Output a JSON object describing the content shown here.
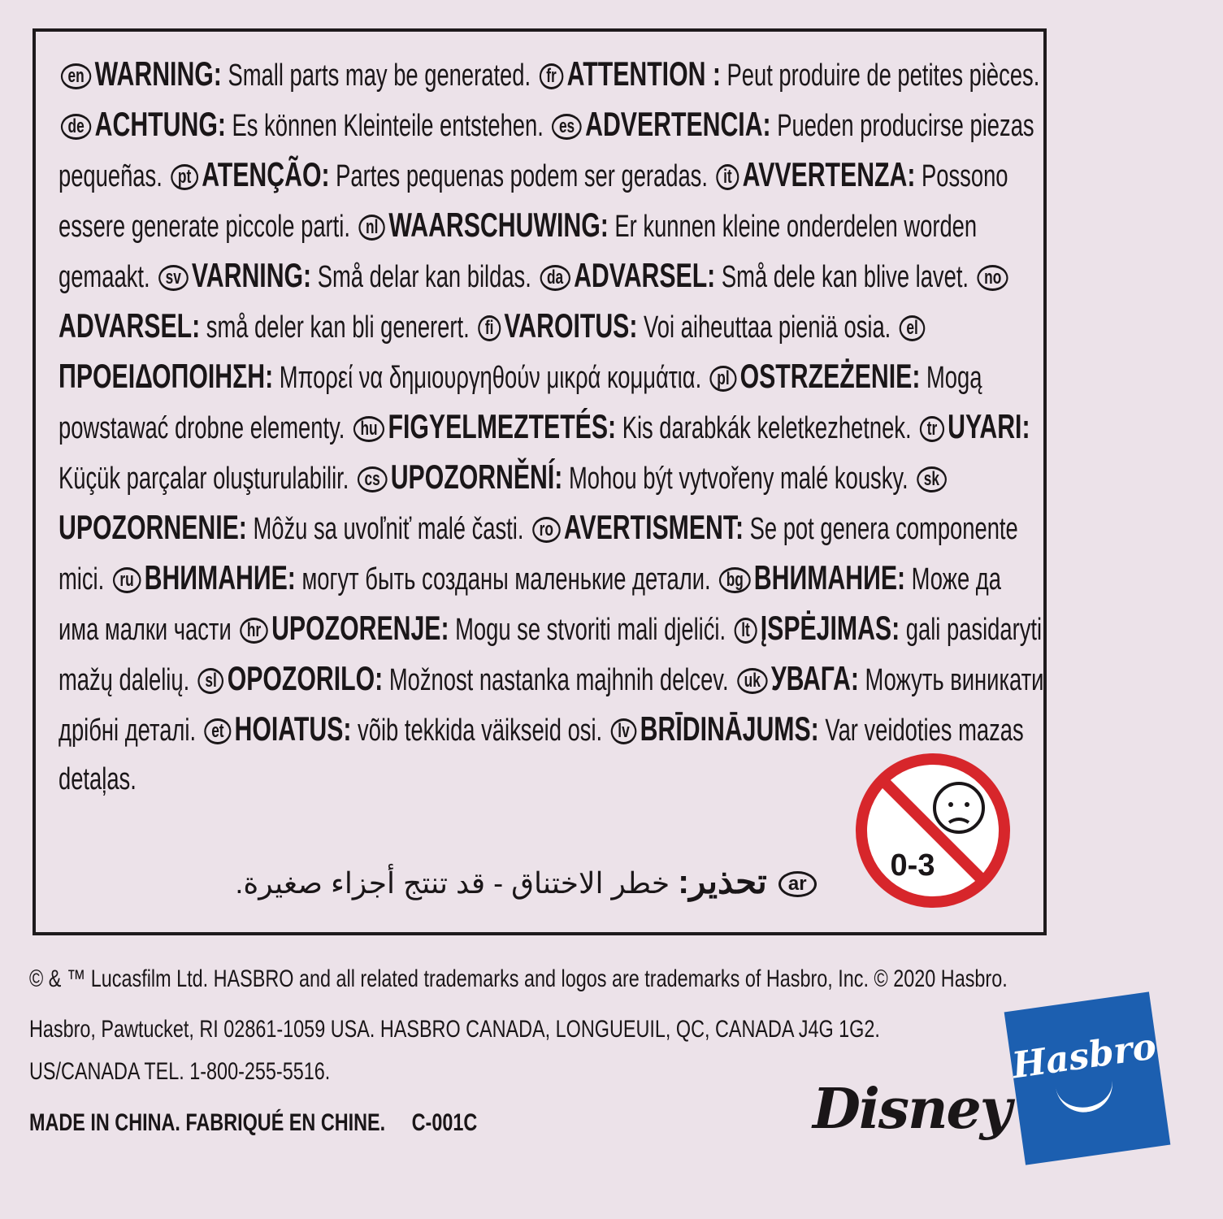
{
  "warnings": [
    {
      "code": "en",
      "heading": "WARNING:",
      "text": "Small parts may be generated."
    },
    {
      "code": "fr",
      "heading": "ATTENTION :",
      "text": "Peut produire de petites pièces."
    },
    {
      "code": "de",
      "heading": "ACHTUNG:",
      "text": "Es können Kleinteile entstehen."
    },
    {
      "code": "es",
      "heading": "ADVERTENCIA:",
      "text": "Pueden producirse piezas pequeñas."
    },
    {
      "code": "pt",
      "heading": "ATENÇÃO:",
      "text": "Partes pequenas podem ser geradas."
    },
    {
      "code": "it",
      "heading": "AVVERTENZA:",
      "text": "Possono essere generate piccole parti."
    },
    {
      "code": "nl",
      "heading": "WAARSCHUWING:",
      "text": "Er kunnen kleine onderdelen worden gemaakt."
    },
    {
      "code": "sv",
      "heading": "VARNING:",
      "text": "Små delar kan bildas."
    },
    {
      "code": "da",
      "heading": "ADVARSEL:",
      "text": "Små dele kan blive lavet."
    },
    {
      "code": "no",
      "heading": "ADVARSEL:",
      "text": "små deler kan bli generert."
    },
    {
      "code": "fi",
      "heading": "VAROITUS:",
      "text": "Voi aiheuttaa pieniä osia."
    },
    {
      "code": "el",
      "heading": "ΠΡΟΕΙΔΟΠΟΙΗΣΗ:",
      "text": "Μπορεί να δημιουργηθούν μικρά κομμάτια."
    },
    {
      "code": "pl",
      "heading": "OSTRZEŻENIE:",
      "text": "Mogą powstawać drobne elementy."
    },
    {
      "code": "hu",
      "heading": "FIGYELMEZTETÉS:",
      "text": "Kis darabkák keletkezhetnek."
    },
    {
      "code": "tr",
      "heading": "UYARI:",
      "text": "Küçük parçalar oluşturulabilir."
    },
    {
      "code": "cs",
      "heading": "UPOZORNĚNÍ:",
      "text": "Mohou být vytvořeny malé kousky."
    },
    {
      "code": "sk",
      "heading": "UPOZORNENIE:",
      "text": "Môžu sa uvoľniť malé časti."
    },
    {
      "code": "ro",
      "heading": "AVERTISMENT:",
      "text": "Se pot genera componente mici."
    },
    {
      "code": "ru",
      "heading": "ВНИМАНИЕ:",
      "text": "могут быть созданы маленькие детали."
    },
    {
      "code": "bg",
      "heading": "ВНИМАНИЕ:",
      "text": "Може да има малки части"
    },
    {
      "code": "hr",
      "heading": "UPOZORENJE:",
      "text": "Mogu se stvoriti mali djelići."
    },
    {
      "code": "lt",
      "heading": "ĮSPĖJIMAS:",
      "text": "gali pasidaryti mažų dalelių."
    },
    {
      "code": "sl",
      "heading": "OPOZORILO:",
      "text": "Možnost nastanka majhnih delcev."
    },
    {
      "code": "uk",
      "heading": "УВАГА:",
      "text": "Можуть виникати дрібні деталі."
    },
    {
      "code": "et",
      "heading": "HOIATUS:",
      "text": "võib tekkida väikseid osi."
    },
    {
      "code": "lv",
      "heading": "BRĪDINĀJUMS:",
      "text": "Var veidoties mazas detaļas."
    }
  ],
  "arabic": {
    "code": "ar",
    "heading": "تحذير:",
    "text": "خطر الاختناق - قد تنتج أجزاء صغيرة."
  },
  "age_warning": {
    "label": "0-3",
    "icon": "no-baby-icon",
    "color": "#d7262b"
  },
  "footer": {
    "line1": "© & ™ Lucasfilm Ltd. HASBRO and all related trademarks and logos are trademarks of Hasbro, Inc. © 2020 Hasbro.",
    "line2": "Hasbro, Pawtucket, RI 02861-1059 USA. HASBRO CANADA, LONGUEUIL, QC, CANADA J4G 1G2.",
    "line3": "US/CANADA TEL. 1-800-255-5516.",
    "made_in": "MADE IN CHINA. FABRIQUÉ EN CHINE.",
    "code": "C-001C"
  },
  "logos": {
    "disney": "Disney",
    "hasbro": "Hasbro",
    "hasbro_color": "#1c5fb0"
  }
}
